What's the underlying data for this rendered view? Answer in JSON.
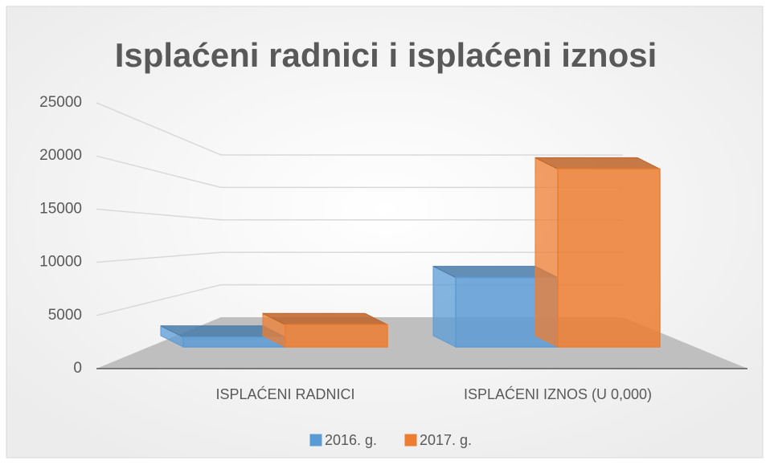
{
  "chart_data": {
    "type": "bar3d",
    "title": "Isplaćeni radnici i isplaćeni iznosi",
    "categories": [
      "ISPLAĆENI RADNICI",
      "ISPLAĆENI IZNOS (U 0,000)"
    ],
    "series": [
      {
        "name": "2016. g.",
        "color": "#5b9bd5",
        "values": [
          1100,
          7800
        ]
      },
      {
        "name": "2017. g.",
        "color": "#ed7d31",
        "values": [
          2500,
          20000
        ]
      }
    ],
    "ylim": [
      0,
      25000
    ],
    "yticks": [
      0,
      5000,
      10000,
      15000,
      20000,
      25000
    ],
    "grid": true,
    "legend": "bottom"
  }
}
